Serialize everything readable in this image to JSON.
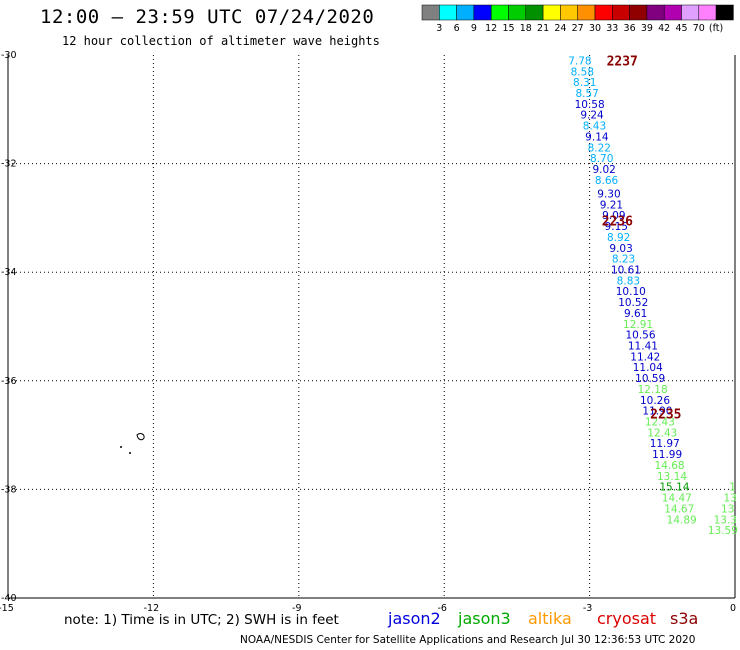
{
  "header": {
    "title": "12:00 – 23:59 UTC 07/24/2020",
    "subtitle": "12 hour collection of altimeter wave heights"
  },
  "colorbar": {
    "swatches": [
      "#808080",
      "#00ffff",
      "#00b0ff",
      "#0000ff",
      "#00ff00",
      "#00cc00",
      "#009000",
      "#ffff00",
      "#ffc800",
      "#ff9000",
      "#ff0000",
      "#c80000",
      "#900000",
      "#800080",
      "#b000b0",
      "#e0a0ff",
      "#ff80ff",
      "#000000"
    ],
    "labels": [
      "3",
      "6",
      "9",
      "12",
      "15",
      "18",
      "21",
      "24",
      "27",
      "30",
      "33",
      "36",
      "39",
      "42",
      "45",
      "70",
      "(ft)"
    ]
  },
  "chart_data": {
    "type": "scatter",
    "xlim": [
      -15,
      0
    ],
    "ylim": [
      -40,
      -30
    ],
    "x_ticks": [
      "-15",
      "-12",
      "-9",
      "-6",
      "-3",
      "0"
    ],
    "y_ticks": [
      "-30",
      "-32",
      "-34",
      "-36",
      "-38",
      "-40"
    ],
    "grid": true,
    "series": [
      {
        "name": "jason2",
        "color": "#0000cc"
      },
      {
        "name": "jason3",
        "color": "#00a000"
      },
      {
        "name": "altika",
        "color": "#ff9900"
      },
      {
        "name": "cryosat",
        "color": "#cc0000"
      },
      {
        "name": "s3a",
        "color": "#8b0000"
      }
    ],
    "time_labels": [
      {
        "text": "2237",
        "x": -2.65,
        "y": -30.1
      },
      {
        "text": "2236",
        "x": -2.75,
        "y": -33.05
      },
      {
        "text": "2235",
        "x": -1.75,
        "y": -36.6
      }
    ],
    "points": [
      {
        "x": -3.2,
        "y": -30.1,
        "v": "7.78",
        "c": "#00b0ff"
      },
      {
        "x": -3.15,
        "y": -30.3,
        "v": "8.58",
        "c": "#00b0ff"
      },
      {
        "x": -3.1,
        "y": -30.5,
        "v": "8.31",
        "c": "#00b0ff"
      },
      {
        "x": -3.05,
        "y": -30.7,
        "v": "8.57",
        "c": "#00b0ff"
      },
      {
        "x": -3.0,
        "y": -30.9,
        "v": "10.58",
        "c": "#0000cc"
      },
      {
        "x": -2.95,
        "y": -31.1,
        "v": "9.24",
        "c": "#0000cc"
      },
      {
        "x": -2.9,
        "y": -31.3,
        "v": "8.43",
        "c": "#00b0ff"
      },
      {
        "x": -2.85,
        "y": -31.5,
        "v": "9.14",
        "c": "#0000cc"
      },
      {
        "x": -2.8,
        "y": -31.7,
        "v": "8.22",
        "c": "#00b0ff"
      },
      {
        "x": -2.75,
        "y": -31.9,
        "v": "8.70",
        "c": "#00b0ff"
      },
      {
        "x": -2.7,
        "y": -32.1,
        "v": "9.02",
        "c": "#0000cc"
      },
      {
        "x": -2.65,
        "y": -32.3,
        "v": "8.66",
        "c": "#00b0ff"
      },
      {
        "x": -2.6,
        "y": -32.55,
        "v": "9.30",
        "c": "#0000cc"
      },
      {
        "x": -2.55,
        "y": -32.75,
        "v": "9.21",
        "c": "#0000cc"
      },
      {
        "x": -2.5,
        "y": -32.95,
        "v": "9.09",
        "c": "#0000cc"
      },
      {
        "x": -2.45,
        "y": -33.15,
        "v": "9.15",
        "c": "#0000cc"
      },
      {
        "x": -2.4,
        "y": -33.35,
        "v": "8.92",
        "c": "#00b0ff"
      },
      {
        "x": -2.35,
        "y": -33.55,
        "v": "9.03",
        "c": "#0000cc"
      },
      {
        "x": -2.3,
        "y": -33.75,
        "v": "8.23",
        "c": "#00b0ff"
      },
      {
        "x": -2.25,
        "y": -33.95,
        "v": "10.61",
        "c": "#0000cc"
      },
      {
        "x": -2.2,
        "y": -34.15,
        "v": "8.83",
        "c": "#00b0ff"
      },
      {
        "x": -2.15,
        "y": -34.35,
        "v": "10.10",
        "c": "#0000cc"
      },
      {
        "x": -2.1,
        "y": -34.55,
        "v": "10.52",
        "c": "#0000cc"
      },
      {
        "x": -2.05,
        "y": -34.75,
        "v": "9.61",
        "c": "#0000cc"
      },
      {
        "x": -2.0,
        "y": -34.95,
        "v": "12.91",
        "c": "#66ee55"
      },
      {
        "x": -1.95,
        "y": -35.15,
        "v": "10.56",
        "c": "#0000cc"
      },
      {
        "x": -1.9,
        "y": -35.35,
        "v": "11.41",
        "c": "#0000cc"
      },
      {
        "x": -1.85,
        "y": -35.55,
        "v": "11.42",
        "c": "#0000cc"
      },
      {
        "x": -1.8,
        "y": -35.75,
        "v": "11.04",
        "c": "#0000cc"
      },
      {
        "x": -1.75,
        "y": -35.95,
        "v": "10.59",
        "c": "#0000cc"
      },
      {
        "x": -1.7,
        "y": -36.15,
        "v": "12.18",
        "c": "#66ee55"
      },
      {
        "x": -1.65,
        "y": -36.35,
        "v": "10.26",
        "c": "#0000cc"
      },
      {
        "x": -1.6,
        "y": -36.55,
        "v": "11.90",
        "c": "#0000cc"
      },
      {
        "x": -1.55,
        "y": -36.75,
        "v": "12.43",
        "c": "#66ee55"
      },
      {
        "x": -1.5,
        "y": -36.95,
        "v": "12.43",
        "c": "#66ee55"
      },
      {
        "x": -1.45,
        "y": -37.15,
        "v": "11.97",
        "c": "#0000cc"
      },
      {
        "x": -1.4,
        "y": -37.35,
        "v": "11.99",
        "c": "#0000cc"
      },
      {
        "x": -1.35,
        "y": -37.55,
        "v": "14.68",
        "c": "#66ee55"
      },
      {
        "x": -1.3,
        "y": -37.75,
        "v": "13.14",
        "c": "#66ee55"
      },
      {
        "x": -1.25,
        "y": -37.95,
        "v": "15.14",
        "c": "#00a000"
      },
      {
        "x": -1.2,
        "y": -38.15,
        "v": "14.47",
        "c": "#66ee55"
      },
      {
        "x": -1.15,
        "y": -38.35,
        "v": "14.67",
        "c": "#66ee55"
      },
      {
        "x": -1.1,
        "y": -38.55,
        "v": "14.89",
        "c": "#66ee55"
      },
      {
        "x": -0.05,
        "y": -37.95,
        "v": "1",
        "c": "#66ee55"
      },
      {
        "x": -0.1,
        "y": -38.15,
        "v": "13",
        "c": "#66ee55"
      },
      {
        "x": -0.15,
        "y": -38.35,
        "v": "13",
        "c": "#66ee55"
      },
      {
        "x": -0.2,
        "y": -38.55,
        "v": "13.3",
        "c": "#66ee55"
      },
      {
        "x": -0.25,
        "y": -38.75,
        "v": "13.59",
        "c": "#66ee55"
      }
    ]
  },
  "note": "note:  1) Time is in UTC;  2) SWH is in feet",
  "satellites": [
    {
      "label": "jason2",
      "color": "#0000dd"
    },
    {
      "label": "jason3",
      "color": "#00aa00"
    },
    {
      "label": "altika",
      "color": "#ff9900"
    },
    {
      "label": "cryosat",
      "color": "#dd0000"
    },
    {
      "label": "s3a",
      "color": "#8b0000"
    }
  ],
  "footer": "NOAA/NESDIS Center for Satellite Applications and Research     Jul 30 12:36:53 UTC 2020"
}
